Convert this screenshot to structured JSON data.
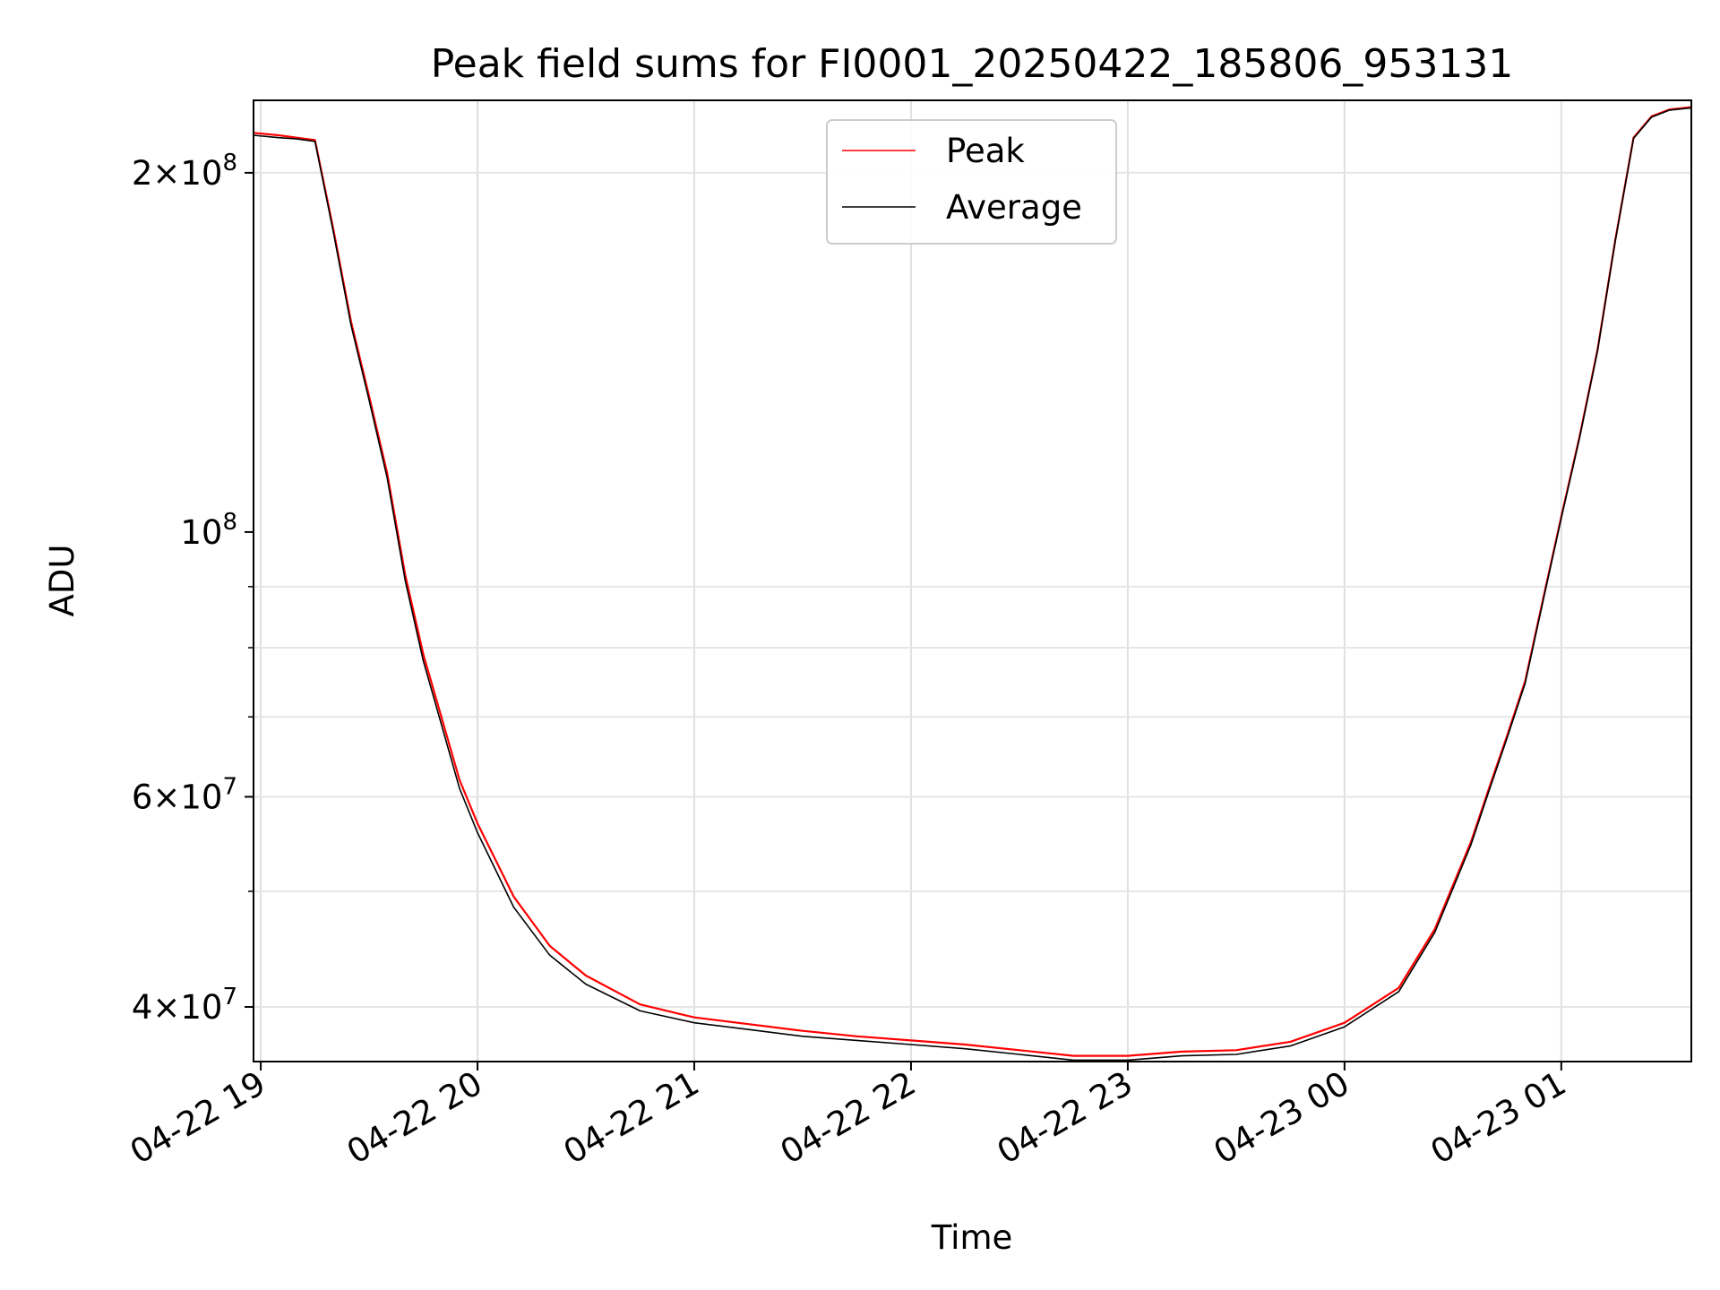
{
  "chart_data": {
    "type": "line",
    "title": "Peak field sums for FI0001_20250422_185806_953131",
    "xlabel": "Time",
    "ylabel": "ADU",
    "yscale": "log",
    "xlim": [
      "2025-04-22 18:58",
      "2025-04-23 01:36"
    ],
    "ylim": [
      36000000,
      230000000
    ],
    "grid": true,
    "legend_position": "top-center",
    "x_ticks": [
      "04-22 19",
      "04-22 20",
      "04-22 21",
      "04-22 22",
      "04-22 23",
      "04-23 00",
      "04-23 01"
    ],
    "y_ticks": [
      {
        "value": 40000000,
        "mantissa": "4",
        "exponent": "7"
      },
      {
        "value": 60000000,
        "mantissa": "6",
        "exponent": "7"
      },
      {
        "value": 100000000,
        "mantissa": "",
        "exponent": "8"
      },
      {
        "value": 200000000,
        "mantissa": "2",
        "exponent": "8"
      }
    ],
    "x": [
      "2025-04-22 18:58",
      "2025-04-22 19:05",
      "2025-04-22 19:10",
      "2025-04-22 19:15",
      "2025-04-22 19:20",
      "2025-04-22 19:25",
      "2025-04-22 19:30",
      "2025-04-22 19:35",
      "2025-04-22 19:40",
      "2025-04-22 19:45",
      "2025-04-22 19:50",
      "2025-04-22 19:55",
      "2025-04-22 20:00",
      "2025-04-22 20:10",
      "2025-04-22 20:20",
      "2025-04-22 20:30",
      "2025-04-22 20:45",
      "2025-04-22 21:00",
      "2025-04-22 21:15",
      "2025-04-22 21:30",
      "2025-04-22 21:45",
      "2025-04-22 22:00",
      "2025-04-22 22:15",
      "2025-04-22 22:30",
      "2025-04-22 22:45",
      "2025-04-22 23:00",
      "2025-04-22 23:15",
      "2025-04-22 23:30",
      "2025-04-22 23:45",
      "2025-04-23 00:00",
      "2025-04-23 00:15",
      "2025-04-23 00:25",
      "2025-04-23 00:35",
      "2025-04-23 00:40",
      "2025-04-23 00:45",
      "2025-04-23 00:50",
      "2025-04-23 00:55",
      "2025-04-23 01:00",
      "2025-04-23 01:05",
      "2025-04-23 01:10",
      "2025-04-23 01:15",
      "2025-04-23 01:20",
      "2025-04-23 01:25",
      "2025-04-23 01:30",
      "2025-04-23 01:36"
    ],
    "series": [
      {
        "name": "Peak",
        "color": "#ff0000",
        "values": [
          216000000,
          215000000,
          214000000,
          213000000,
          180000000,
          150000000,
          130000000,
          112000000,
          92000000,
          79000000,
          70000000,
          62000000,
          57000000,
          49500000,
          45000000,
          42500000,
          40200000,
          39200000,
          38700000,
          38200000,
          37800000,
          37500000,
          37200000,
          36800000,
          36400000,
          36400000,
          36700000,
          36800000,
          37400000,
          38800000,
          41500000,
          46500000,
          55000000,
          61000000,
          67500000,
          75000000,
          88000000,
          103000000,
          120000000,
          142000000,
          176000000,
          214000000,
          223000000,
          226000000,
          227000000
        ]
      },
      {
        "name": "Average",
        "color": "#000000",
        "values": [
          215000000,
          214000000,
          213500000,
          212500000,
          179000000,
          149000000,
          129000000,
          111000000,
          91000000,
          78000000,
          69000000,
          61000000,
          56000000,
          48500000,
          44200000,
          41800000,
          39700000,
          38800000,
          38300000,
          37800000,
          37500000,
          37200000,
          36900000,
          36500000,
          36100000,
          36100000,
          36400000,
          36500000,
          37100000,
          38500000,
          41200000,
          46200000,
          54700000,
          60700000,
          67200000,
          74700000,
          87700000,
          102700000,
          119700000,
          141700000,
          175700000,
          213700000,
          222700000,
          225700000,
          226700000
        ]
      }
    ]
  }
}
